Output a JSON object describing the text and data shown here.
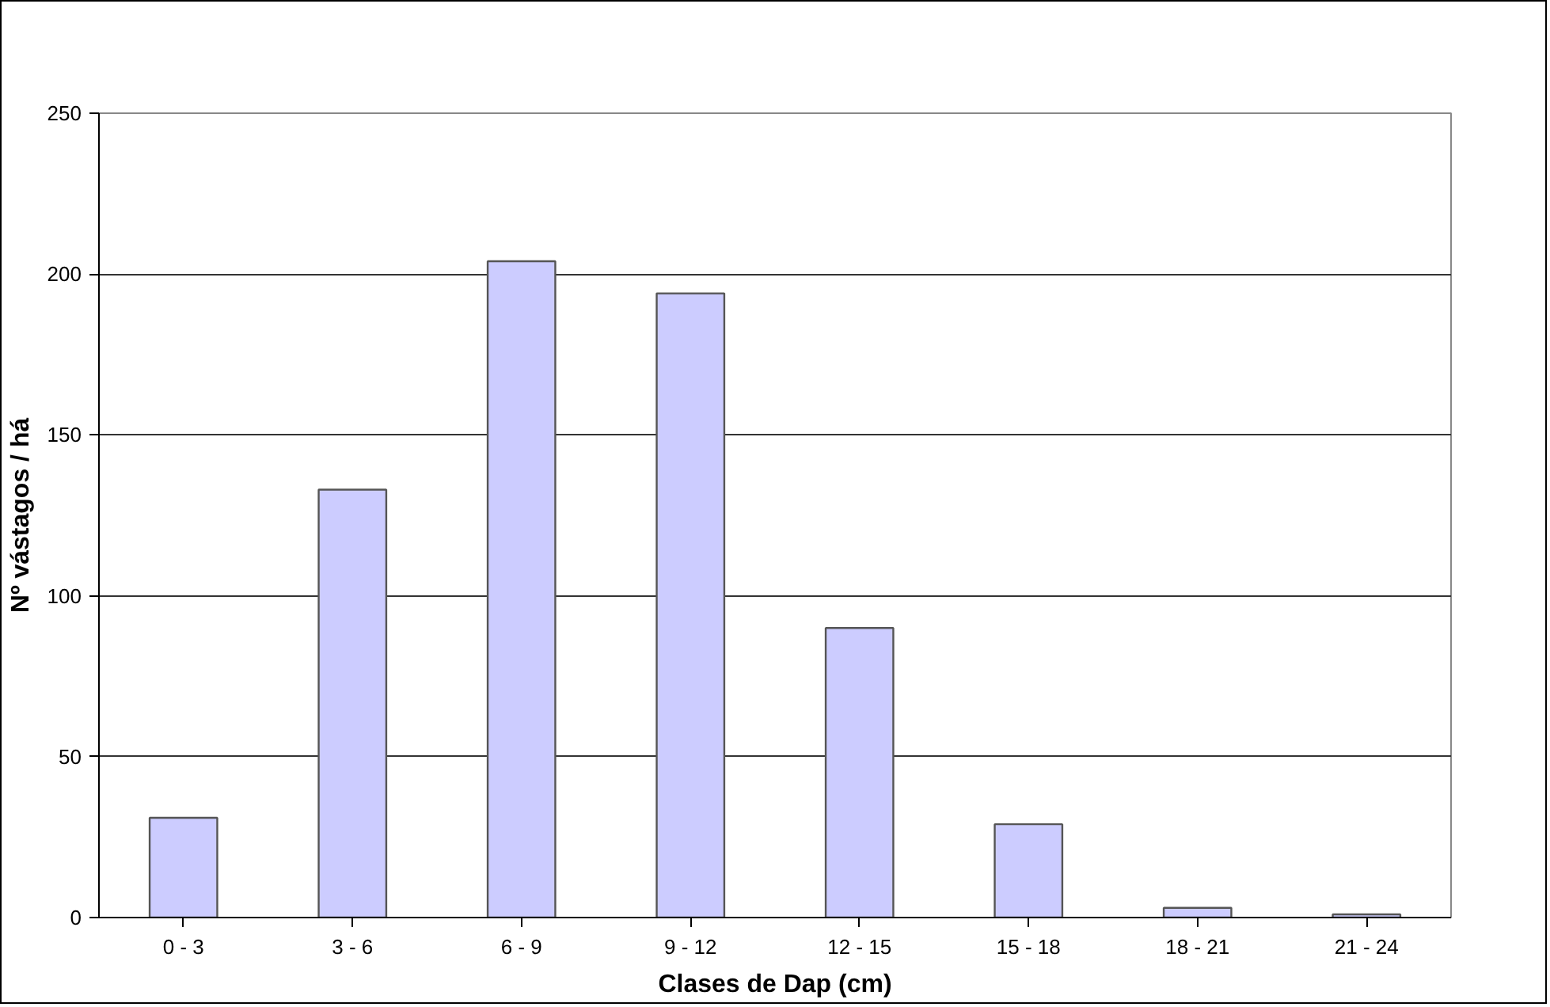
{
  "chart_data": {
    "type": "bar",
    "xlabel": "Clases de Dap (cm)",
    "ylabel": "Nº vástagos / há",
    "categories": [
      "0 - 3",
      "3 - 6",
      "6 - 9",
      "9 - 12",
      "12 - 15",
      "15 - 18",
      "18 - 21",
      "21 - 24"
    ],
    "values": [
      31,
      133,
      204,
      194,
      90,
      29,
      3,
      1
    ],
    "color": "#ccccff",
    "ylim": [
      0,
      250
    ],
    "yticks": [
      0,
      50,
      100,
      150,
      200,
      250
    ],
    "grid": "y"
  }
}
